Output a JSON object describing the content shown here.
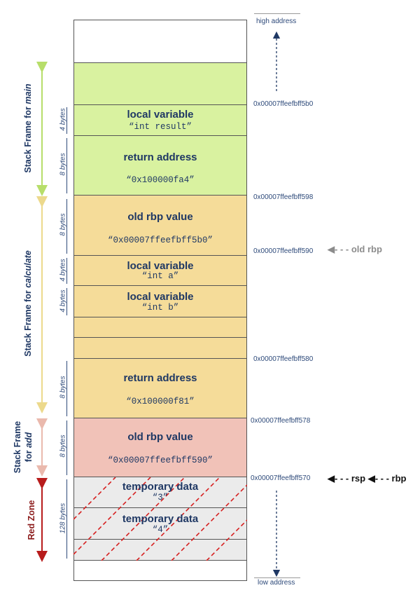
{
  "labels": {
    "high_address": "high address",
    "low_address": "low address"
  },
  "frames": {
    "main": {
      "prefix": "Stack Frame for",
      "name": "main"
    },
    "calculate": {
      "prefix": "Stack Frame for",
      "name": "calculate"
    },
    "add_line1": "Stack Frame",
    "add_line2_prefix": "for",
    "add_name": "add",
    "red_zone": "Red Zone"
  },
  "cells": {
    "main_local_title": "local variable",
    "main_local_value": "“int result”",
    "main_return_title": "return address",
    "main_return_value": "“0x100000fa4”",
    "calc_oldrbp_title": "old rbp value",
    "calc_oldrbp_value": "“0x00007ffeefbff5b0”",
    "calc_local_a_title": "local variable",
    "calc_local_a_value": "“int a”",
    "calc_local_b_title": "local variable",
    "calc_local_b_value": "“int b”",
    "calc_return_title": "return address",
    "calc_return_value": "“0x100000f81”",
    "add_oldrbp_title": "old rbp value",
    "add_oldrbp_value": "“0x00007ffeefbff590”",
    "temp1_title": "temporary data",
    "temp1_value": "“3”",
    "temp2_title": "temporary data",
    "temp2_value": "“4”"
  },
  "sizes": {
    "s1": "4 bytes",
    "s2": "8 bytes",
    "s3": "8 bytes",
    "s4": "4 bytes",
    "s5": "4 bytes",
    "s6": "8 bytes",
    "s7": "8 bytes",
    "s8": "128 bytes"
  },
  "addresses": {
    "a1": "0x00007ffeefbff5b0",
    "a2": "0x00007ffeefbff598",
    "a3": "0x00007ffeefbff590",
    "a4": "0x00007ffeefbff580",
    "a5": "0x00007ffeefbff578",
    "a6": "0x00007ffeefbff570"
  },
  "pointers": {
    "old_rbp": "old rbp",
    "rsp": "rsp",
    "rbp": "rbp"
  },
  "colors": {
    "main": "#d9f2a0",
    "calculate": "#f5dc99",
    "add": "#f1c2b8",
    "red_zone": "#ebebeb",
    "hatch": "#d62020"
  }
}
